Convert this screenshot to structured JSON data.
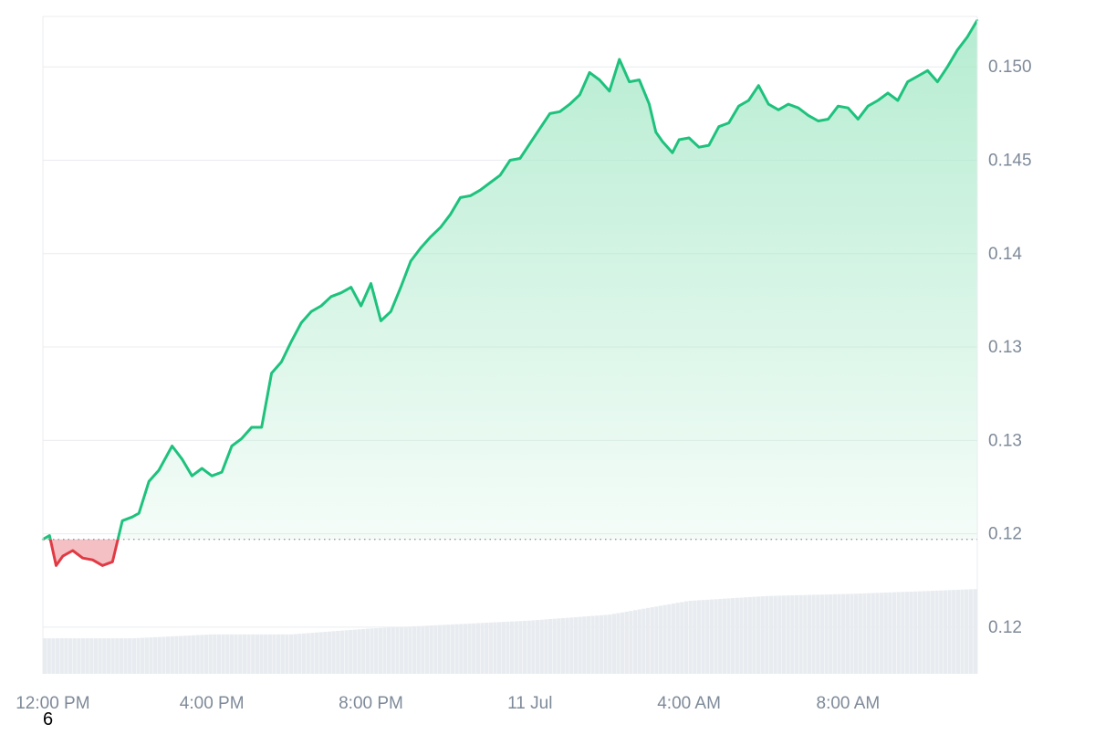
{
  "corner_label": "6",
  "colors": {
    "up_line": "#1ec27d",
    "down_line": "#e13a44",
    "up_fill_top": "#a9e9c9",
    "down_fill": "#f3b9bd",
    "volume": "#e8ecf0",
    "grid": "#e9ecef",
    "axis_text": "#7e8a99",
    "baseline": "#8a9099"
  },
  "chart_data": {
    "type": "area",
    "title": "",
    "xlabel": "",
    "ylabel": "",
    "x_domain": [
      "2024-07-10T11:45",
      "2024-07-11T11:15"
    ],
    "x_ticks": [
      {
        "label": "12:00 PM",
        "x": "2024-07-10T12:00"
      },
      {
        "label": "4:00 PM",
        "x": "2024-07-10T16:00"
      },
      {
        "label": "8:00 PM",
        "x": "2024-07-10T20:00"
      },
      {
        "label": "11 Jul",
        "x": "2024-07-11T00:00"
      },
      {
        "label": "4:00 AM",
        "x": "2024-07-11T04:00"
      },
      {
        "label": "8:00 AM",
        "x": "2024-07-11T08:00"
      }
    ],
    "y_ticks": [
      {
        "label": "0.150",
        "value": 0.15
      },
      {
        "label": "0.145",
        "value": 0.145
      },
      {
        "label": "0.14",
        "value": 0.14
      },
      {
        "label": "0.13",
        "value": 0.135
      },
      {
        "label": "0.13",
        "value": 0.13
      },
      {
        "label": "0.12",
        "value": 0.125
      },
      {
        "label": "0.12",
        "value": 0.12
      }
    ],
    "ylim": [
      0.1175,
      0.1527
    ],
    "grid": true,
    "baseline_value": 0.1247,
    "series": [
      {
        "x": [
          "2024-07-10T11:45",
          "2024-07-10T11:55",
          "2024-07-10T12:05",
          "2024-07-10T12:15",
          "2024-07-10T12:30",
          "2024-07-10T12:45",
          "2024-07-10T13:00",
          "2024-07-10T13:15",
          "2024-07-10T13:30",
          "2024-07-10T13:45",
          "2024-07-10T14:00",
          "2024-07-10T14:10",
          "2024-07-10T14:25",
          "2024-07-10T14:40",
          "2024-07-10T15:00",
          "2024-07-10T15:15",
          "2024-07-10T15:30",
          "2024-07-10T15:45",
          "2024-07-10T16:00",
          "2024-07-10T16:15",
          "2024-07-10T16:30",
          "2024-07-10T16:45",
          "2024-07-10T17:00",
          "2024-07-10T17:15",
          "2024-07-10T17:30",
          "2024-07-10T17:45",
          "2024-07-10T18:00",
          "2024-07-10T18:15",
          "2024-07-10T18:30",
          "2024-07-10T18:45",
          "2024-07-10T19:00",
          "2024-07-10T19:15",
          "2024-07-10T19:30",
          "2024-07-10T19:45",
          "2024-07-10T20:00",
          "2024-07-10T20:15",
          "2024-07-10T20:30",
          "2024-07-10T20:45",
          "2024-07-10T21:00",
          "2024-07-10T21:15",
          "2024-07-10T21:30",
          "2024-07-10T21:45",
          "2024-07-10T22:00",
          "2024-07-10T22:15",
          "2024-07-10T22:30",
          "2024-07-10T22:45",
          "2024-07-10T23:00",
          "2024-07-10T23:15",
          "2024-07-10T23:30",
          "2024-07-10T23:45",
          "2024-07-11T00:00",
          "2024-07-11T00:15",
          "2024-07-11T00:30",
          "2024-07-11T00:45",
          "2024-07-11T01:00",
          "2024-07-11T01:15",
          "2024-07-11T01:30",
          "2024-07-11T01:45",
          "2024-07-11T02:00",
          "2024-07-11T02:15",
          "2024-07-11T02:30",
          "2024-07-11T02:45",
          "2024-07-11T03:00",
          "2024-07-11T03:10",
          "2024-07-11T03:20",
          "2024-07-11T03:35",
          "2024-07-11T03:45",
          "2024-07-11T04:00",
          "2024-07-11T04:15",
          "2024-07-11T04:30",
          "2024-07-11T04:45",
          "2024-07-11T05:00",
          "2024-07-11T05:15",
          "2024-07-11T05:30",
          "2024-07-11T05:45",
          "2024-07-11T06:00",
          "2024-07-11T06:15",
          "2024-07-11T06:30",
          "2024-07-11T06:45",
          "2024-07-11T07:00",
          "2024-07-11T07:15",
          "2024-07-11T07:30",
          "2024-07-11T07:45",
          "2024-07-11T08:00",
          "2024-07-11T08:15",
          "2024-07-11T08:30",
          "2024-07-11T08:45",
          "2024-07-11T09:00",
          "2024-07-11T09:15",
          "2024-07-11T09:30",
          "2024-07-11T09:45",
          "2024-07-11T10:00",
          "2024-07-11T10:15",
          "2024-07-11T10:30",
          "2024-07-11T10:45",
          "2024-07-11T11:00",
          "2024-07-11T11:15"
        ],
        "y": [
          0.1247,
          0.1249,
          0.1233,
          0.1238,
          0.1241,
          0.1237,
          0.1236,
          0.1233,
          0.1235,
          0.1257,
          0.1259,
          0.1261,
          0.1278,
          0.1284,
          0.1297,
          0.129,
          0.1281,
          0.1285,
          0.1281,
          0.1283,
          0.1297,
          0.1301,
          0.1307,
          0.1307,
          0.1336,
          0.1342,
          0.1353,
          0.1363,
          0.1369,
          0.1372,
          0.1377,
          0.1379,
          0.1382,
          0.1372,
          0.1384,
          0.1364,
          0.1369,
          0.1382,
          0.1396,
          0.1403,
          0.1409,
          0.1414,
          0.1421,
          0.143,
          0.1431,
          0.1434,
          0.1438,
          0.1442,
          0.145,
          0.1451,
          0.1459,
          0.1467,
          0.1475,
          0.1476,
          0.148,
          0.1485,
          0.1497,
          0.1493,
          0.1487,
          0.1504,
          0.1492,
          0.1493,
          0.148,
          0.1465,
          0.146,
          0.1454,
          0.1461,
          0.1462,
          0.1457,
          0.1458,
          0.1468,
          0.147,
          0.1479,
          0.1482,
          0.149,
          0.148,
          0.1477,
          0.148,
          0.1478,
          0.1474,
          0.1471,
          0.1472,
          0.1479,
          0.1478,
          0.1472,
          0.1479,
          0.1482,
          0.1486,
          0.1482,
          0.1492,
          0.1495,
          0.1498,
          0.1492,
          0.15,
          0.1509,
          0.1516,
          0.1525
        ]
      }
    ],
    "volume": {
      "x": [
        "2024-07-10T11:45",
        "2024-07-10T14:00",
        "2024-07-10T16:00",
        "2024-07-10T18:00",
        "2024-07-10T20:00",
        "2024-07-10T22:00",
        "2024-07-11T00:00",
        "2024-07-11T02:00",
        "2024-07-11T04:00",
        "2024-07-11T06:00",
        "2024-07-11T08:00",
        "2024-07-11T10:00",
        "2024-07-11T11:15"
      ],
      "relative_height": [
        0.36,
        0.36,
        0.4,
        0.4,
        0.46,
        0.5,
        0.54,
        0.6,
        0.74,
        0.79,
        0.81,
        0.84,
        0.86
      ]
    }
  }
}
